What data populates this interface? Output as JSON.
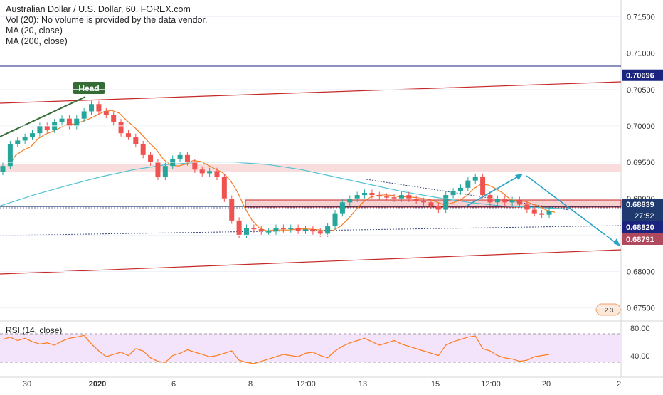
{
  "header": {
    "title": "Australian Dollar / U.S. Dollar, 60, FOREX.com",
    "vol": "Vol (20): No volume is provided by the data vendor.",
    "ma20": "MA (20, close)",
    "ma200": "MA (200, close)"
  },
  "rsi": {
    "label": "RSI (14, close)",
    "ticks": [
      "80.00",
      "40.00"
    ],
    "levels": [
      70,
      30
    ]
  },
  "annotations": {
    "head": "Head",
    "countdown": "27:52",
    "small_badge": "2 3"
  },
  "colors": {
    "candle_up": "#26a69a",
    "candle_down": "#ef5350",
    "ma20": "#f57c1f",
    "ma200": "#4fc3d0",
    "channel": "#c62828",
    "neckline": "#3b4a7a",
    "rsi_line": "#ff7b1c",
    "rsi_band": "#f3e4fb",
    "resistance_zone": "#f8c8c8",
    "support_zone": "#f7d0d0",
    "arrow": "#29a3c6",
    "head_trend": "#356b35",
    "price_badge": "#1e3a6e",
    "level_badge_high": "#1a237e",
    "level_badge_low": "#b0495d"
  },
  "chart_data": {
    "type": "candlestick",
    "title": "Australian Dollar / U.S. Dollar, 60, FOREX.com",
    "y_axis": {
      "ticks": [
        "0.71500",
        "0.71000",
        "0.70500",
        "0.70000",
        "0.69500",
        "0.69000",
        "0.68500",
        "0.68000",
        "0.67500"
      ],
      "range": [
        0.6732,
        0.7173
      ]
    },
    "x_axis": {
      "ticks": [
        "30",
        "2020",
        "6",
        "8",
        "12:00",
        "13",
        "15",
        "12:00",
        "20",
        "2"
      ]
    },
    "price_labels": [
      {
        "label": "0.70696",
        "value": 0.70696
      },
      {
        "label": "0.68839",
        "value": 0.68839
      },
      {
        "label": "0.68820",
        "value": 0.6882
      },
      {
        "label": "0.68791",
        "value": 0.68791
      }
    ],
    "ohlc_close_path": [
      0.6945,
      0.6975,
      0.698,
      0.6985,
      0.699,
      0.7,
      0.6995,
      0.7005,
      0.701,
      0.7,
      0.701,
      0.702,
      0.703,
      0.702,
      0.7015,
      0.7005,
      0.699,
      0.6985,
      0.6975,
      0.696,
      0.695,
      0.693,
      0.6945,
      0.6955,
      0.696,
      0.695,
      0.694,
      0.6935,
      0.6938,
      0.693,
      0.69,
      0.687,
      0.685,
      0.686,
      0.6858,
      0.6855,
      0.6855,
      0.686,
      0.6858,
      0.686,
      0.6856,
      0.6858,
      0.6855,
      0.6852,
      0.6862,
      0.688,
      0.6895,
      0.69,
      0.6905,
      0.6908,
      0.6905,
      0.6903,
      0.6902,
      0.69,
      0.6905,
      0.69,
      0.6897,
      0.6895,
      0.689,
      0.6885,
      0.6905,
      0.691,
      0.6915,
      0.6925,
      0.693,
      0.6905,
      0.6895,
      0.69,
      0.6895,
      0.6898,
      0.6892,
      0.6885,
      0.688,
      0.6878,
      0.6883
    ]
  }
}
